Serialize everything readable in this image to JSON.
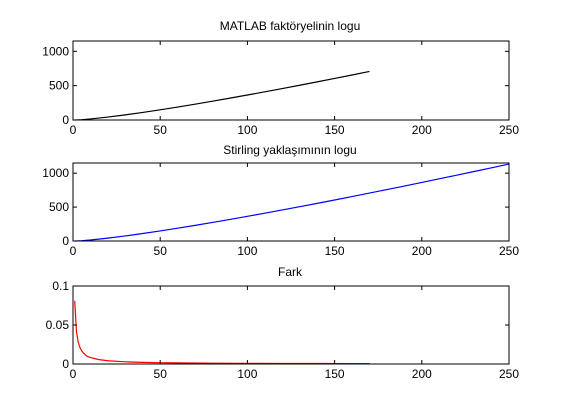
{
  "chart_data": [
    {
      "type": "line",
      "title": "MATLAB faktöryelinin logu",
      "xlim": [
        0,
        250
      ],
      "ylim": [
        0,
        1150
      ],
      "xticks": [
        0,
        50,
        100,
        150,
        200,
        250
      ],
      "yticks": [
        0,
        500,
        1000
      ],
      "color": "#000000",
      "x": [
        1,
        2,
        5,
        10,
        20,
        30,
        40,
        50,
        60,
        70,
        80,
        90,
        100,
        110,
        120,
        130,
        140,
        150,
        160,
        170
      ],
      "y": [
        0,
        0.69,
        4.79,
        15.1,
        42.34,
        74.66,
        110.32,
        148.48,
        188.63,
        230.44,
        273.67,
        318.15,
        363.74,
        410.32,
        457.79,
        506.08,
        555.11,
        604.85,
        655.22,
        706.57
      ]
    },
    {
      "type": "line",
      "title": "Stirling yaklaşımının logu",
      "xlim": [
        0,
        250
      ],
      "ylim": [
        0,
        1150
      ],
      "xticks": [
        0,
        50,
        100,
        150,
        200,
        250
      ],
      "yticks": [
        0,
        500,
        1000
      ],
      "color": "#0000ff",
      "x": [
        1,
        2,
        5,
        10,
        20,
        30,
        40,
        50,
        60,
        70,
        80,
        90,
        100,
        110,
        120,
        130,
        140,
        150,
        160,
        170,
        180,
        190,
        200,
        210,
        220,
        230,
        240,
        250
      ],
      "y": [
        -0.08,
        0.65,
        4.77,
        15.1,
        42.33,
        74.66,
        110.32,
        148.48,
        188.63,
        230.44,
        273.67,
        318.15,
        363.74,
        410.32,
        457.79,
        506.08,
        555.11,
        604.85,
        655.22,
        706.57,
        758.25,
        810.47,
        863.23,
        916.51,
        970.28,
        1024.54,
        1079.27,
        1134.42
      ]
    },
    {
      "type": "line",
      "title": "Fark",
      "xlim": [
        0,
        250
      ],
      "ylim": [
        0,
        0.1
      ],
      "xticks": [
        0,
        50,
        100,
        150,
        200,
        250
      ],
      "yticks": [
        0,
        0.05,
        0.1
      ],
      "color": "#ff0000",
      "x": [
        1,
        2,
        3,
        4,
        5,
        6,
        8,
        10,
        15,
        20,
        30,
        40,
        50,
        60,
        80,
        100,
        120,
        140,
        160,
        170
      ],
      "y": [
        0.081,
        0.041,
        0.028,
        0.021,
        0.017,
        0.014,
        0.01,
        0.0083,
        0.0056,
        0.0042,
        0.0028,
        0.0021,
        0.0017,
        0.0014,
        0.001,
        0.00083,
        0.0007,
        0.0006,
        0.0005,
        0.0005
      ]
    }
  ]
}
